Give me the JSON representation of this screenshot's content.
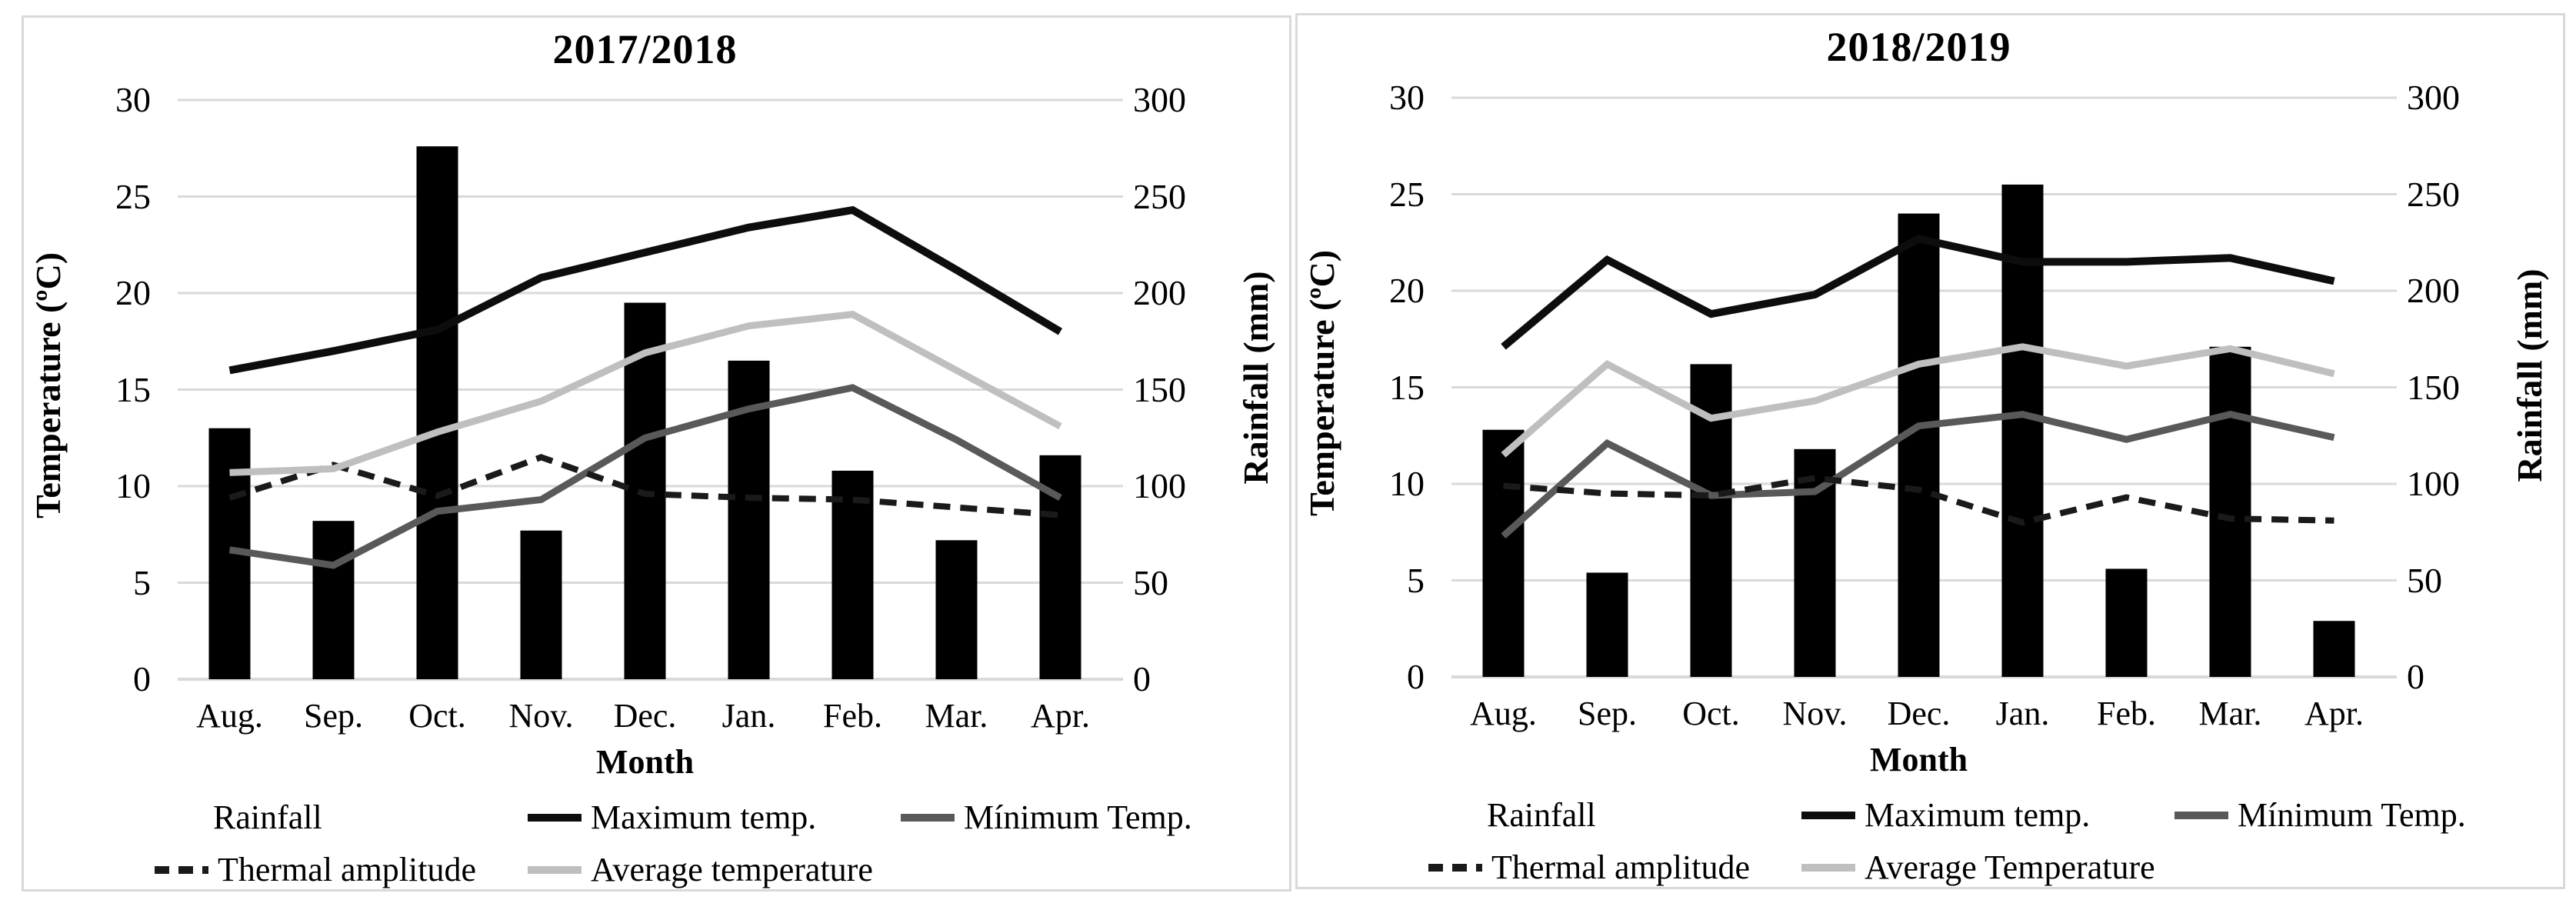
{
  "colors": {
    "bar": "#7f7f7f",
    "max_temp": "#0d0d0d",
    "min_temp": "#595959",
    "thermal_amplitude": "#1a1a1a",
    "avg_temp": "#bfbfbf",
    "gridline": "#d9d9d9",
    "panel_border": "#d9d9d9",
    "text": "#000000"
  },
  "chart_data": [
    {
      "type": "combo-bar-line",
      "title": "2017/2018",
      "x_label": "Month",
      "categories": [
        "Aug.",
        "Sep.",
        "Oct.",
        "Nov.",
        "Dec.",
        "Jan.",
        "Feb.",
        "Mar.",
        "Apr."
      ],
      "y_left": {
        "label": "Temperature (ºC)",
        "ticks": [
          0,
          5,
          10,
          15,
          20,
          25,
          30
        ],
        "range": [
          0,
          30
        ]
      },
      "y_right": {
        "label": "Rainfall (mm)",
        "ticks": [
          0,
          50,
          100,
          150,
          200,
          250,
          300
        ],
        "range": [
          0,
          300
        ]
      },
      "grid": "horizontal-only",
      "legend_position": "bottom",
      "series": [
        {
          "key": "rainfall",
          "name": "Rainfall",
          "type": "bar",
          "axis": "right",
          "values": [
            130,
            82,
            276,
            77,
            195,
            165,
            108,
            72,
            116
          ]
        },
        {
          "key": "max_temp",
          "name": "Maximum temp.",
          "type": "line",
          "style": "solid",
          "axis": "left",
          "values": [
            16.0,
            17.0,
            18.1,
            20.8,
            22.1,
            23.4,
            24.3,
            21.2,
            18.0
          ]
        },
        {
          "key": "min_temp",
          "name": "Mínimum Temp.",
          "type": "line",
          "style": "solid",
          "axis": "left",
          "values": [
            6.7,
            5.9,
            8.7,
            9.3,
            12.5,
            14.0,
            15.1,
            12.4,
            9.4
          ]
        },
        {
          "key": "thermal_amplitude",
          "name": "Thermal amplitude",
          "type": "line",
          "style": "dashed",
          "axis": "left",
          "values": [
            9.4,
            11.1,
            9.5,
            11.5,
            9.6,
            9.4,
            9.3,
            8.9,
            8.5
          ]
        },
        {
          "key": "avg_temp",
          "name": "Average temperature",
          "type": "line",
          "style": "solid",
          "axis": "left",
          "values": [
            10.7,
            10.9,
            12.8,
            14.4,
            16.9,
            18.3,
            18.9,
            16.0,
            13.1
          ]
        }
      ]
    },
    {
      "type": "combo-bar-line",
      "title": "2018/2019",
      "x_label": "Month",
      "categories": [
        "Aug.",
        "Sep.",
        "Oct.",
        "Nov.",
        "Dec.",
        "Jan.",
        "Feb.",
        "Mar.",
        "Apr."
      ],
      "y_left": {
        "label": "Temperature (ºC)",
        "ticks": [
          0,
          5,
          10,
          15,
          20,
          25,
          30
        ],
        "range": [
          0,
          30
        ]
      },
      "y_right": {
        "label": "Rainfall (mm)",
        "ticks": [
          0,
          50,
          100,
          150,
          200,
          250,
          300
        ],
        "range": [
          0,
          300
        ]
      },
      "grid": "horizontal-only",
      "legend_position": "bottom",
      "series": [
        {
          "key": "rainfall",
          "name": "Rainfall",
          "type": "bar",
          "axis": "right",
          "values": [
            128,
            54,
            162,
            118,
            240,
            255,
            56,
            171,
            29
          ]
        },
        {
          "key": "max_temp",
          "name": "Maximum temp.",
          "type": "line",
          "style": "solid",
          "axis": "left",
          "values": [
            17.1,
            21.6,
            18.8,
            19.8,
            22.7,
            21.5,
            21.5,
            21.7,
            20.5
          ]
        },
        {
          "key": "min_temp",
          "name": "Mínimum Temp.",
          "type": "line",
          "style": "solid",
          "axis": "left",
          "values": [
            7.3,
            12.1,
            9.4,
            9.6,
            13.0,
            13.6,
            12.3,
            13.6,
            12.4
          ]
        },
        {
          "key": "thermal_amplitude",
          "name": "Thermal amplitude",
          "type": "line",
          "style": "dashed",
          "axis": "left",
          "values": [
            9.9,
            9.5,
            9.4,
            10.3,
            9.7,
            8.0,
            9.3,
            8.2,
            8.1
          ]
        },
        {
          "key": "avg_temp",
          "name": "Average Temperature",
          "type": "line",
          "style": "solid",
          "axis": "left",
          "values": [
            11.5,
            16.2,
            13.4,
            14.3,
            16.2,
            17.1,
            16.1,
            17.0,
            15.7
          ]
        }
      ]
    }
  ]
}
